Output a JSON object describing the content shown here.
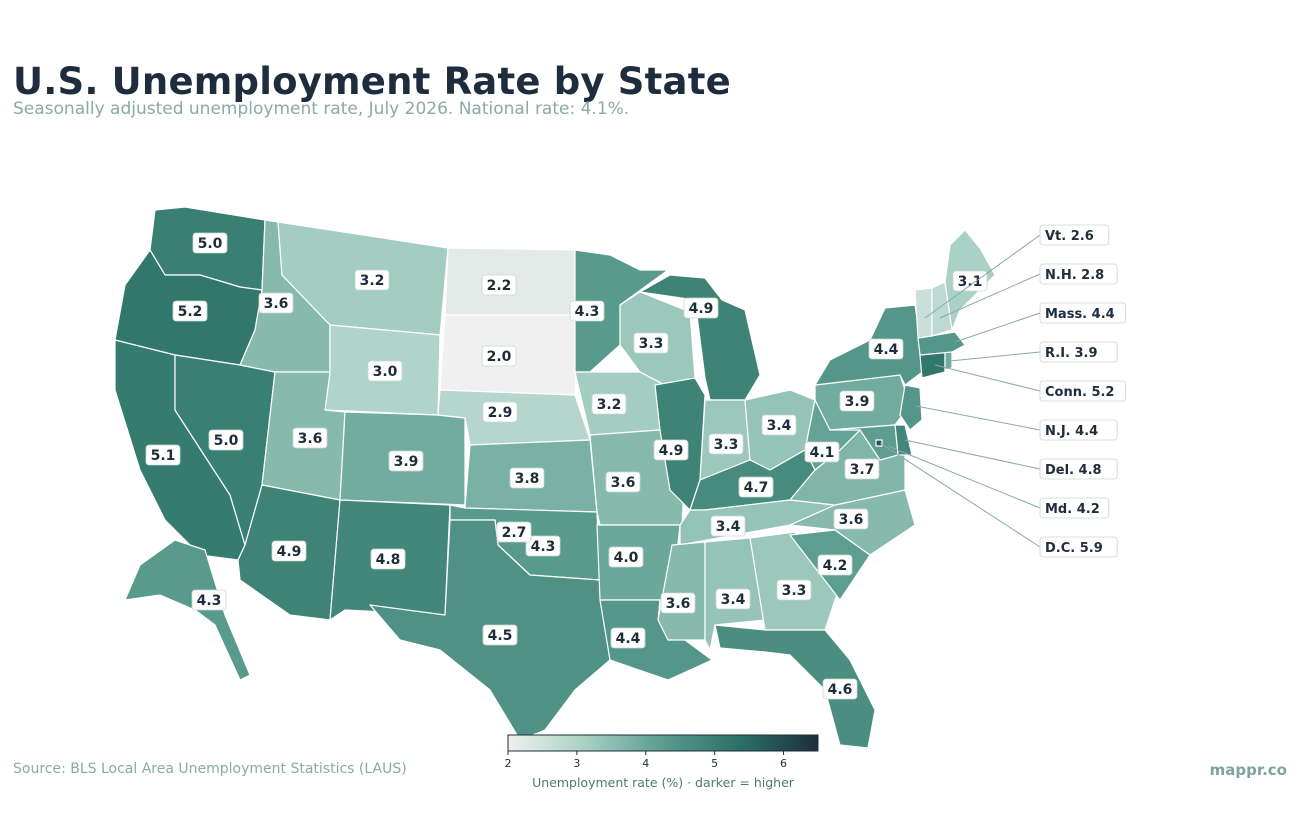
{
  "header": {
    "title": "U.S. Unemployment Rate by State",
    "subtitle": "Seasonally adjusted unemployment rate, July 2026. National rate: 4.1%."
  },
  "footer": {
    "source": "Source: BLS Local Area Unemployment Statistics (LAUS)",
    "brand": "mappr.co"
  },
  "legend": {
    "label": "Unemployment rate (%)  ·  darker = higher",
    "ticks": [
      "2",
      "3",
      "4",
      "5",
      "6"
    ],
    "min": 2,
    "max": 6.5,
    "colors": [
      "#f0f0f0",
      "#a8d0c4",
      "#5a9c8e",
      "#2a7065",
      "#1e2d3d"
    ]
  },
  "states": [
    {
      "id": "WA",
      "value": 5.0,
      "label": "5.0"
    },
    {
      "id": "OR",
      "value": 5.2,
      "label": "5.2"
    },
    {
      "id": "CA",
      "value": 5.1,
      "label": "5.1"
    },
    {
      "id": "NV",
      "value": 5.0,
      "label": "5.0"
    },
    {
      "id": "ID",
      "value": 3.6,
      "label": "3.6"
    },
    {
      "id": "MT",
      "value": 3.2,
      "label": "3.2"
    },
    {
      "id": "WY",
      "value": 3.0,
      "label": "3.0"
    },
    {
      "id": "UT",
      "value": 3.6,
      "label": "3.6"
    },
    {
      "id": "AZ",
      "value": 4.9,
      "label": "4.9"
    },
    {
      "id": "CO",
      "value": 3.9,
      "label": "3.9"
    },
    {
      "id": "NM",
      "value": 4.8,
      "label": "4.8"
    },
    {
      "id": "ND",
      "value": 2.2,
      "label": "2.2"
    },
    {
      "id": "SD",
      "value": 2.0,
      "label": "2.0"
    },
    {
      "id": "NE",
      "value": 2.9,
      "label": "2.9"
    },
    {
      "id": "KS",
      "value": 3.8,
      "label": "3.8"
    },
    {
      "id": "OK",
      "value": 4.3,
      "label": "4.3"
    },
    {
      "id": "TX",
      "value": 4.5,
      "label": "4.5"
    },
    {
      "id": "MN",
      "value": 4.3,
      "label": "4.3"
    },
    {
      "id": "IA",
      "value": 3.2,
      "label": "3.2"
    },
    {
      "id": "MO",
      "value": 3.6,
      "label": "3.6"
    },
    {
      "id": "AR",
      "value": 4.0,
      "label": "4.0"
    },
    {
      "id": "LA",
      "value": 4.4,
      "label": "4.4"
    },
    {
      "id": "WI",
      "value": 3.3,
      "label": "3.3"
    },
    {
      "id": "IL",
      "value": 4.9,
      "label": "4.9"
    },
    {
      "id": "MI",
      "value": 4.9,
      "label": "4.9"
    },
    {
      "id": "IN",
      "value": 3.3,
      "label": "3.3"
    },
    {
      "id": "OH",
      "value": 3.4,
      "label": "3.4"
    },
    {
      "id": "KY",
      "value": 4.7,
      "label": "4.7"
    },
    {
      "id": "TN",
      "value": 3.4,
      "label": "3.4"
    },
    {
      "id": "MS",
      "value": 3.6,
      "label": "3.6"
    },
    {
      "id": "AL",
      "value": 3.4,
      "label": "3.4"
    },
    {
      "id": "GA",
      "value": 3.3,
      "label": "3.3"
    },
    {
      "id": "FL",
      "value": 4.6,
      "label": "4.6"
    },
    {
      "id": "SC",
      "value": 4.2,
      "label": "4.2"
    },
    {
      "id": "NC",
      "value": 3.6,
      "label": "3.6"
    },
    {
      "id": "VA",
      "value": 3.7,
      "label": "3.7"
    },
    {
      "id": "WV",
      "value": 4.1,
      "label": "4.1"
    },
    {
      "id": "PA",
      "value": 3.9,
      "label": "3.9"
    },
    {
      "id": "NY",
      "value": 4.4,
      "label": "4.4"
    },
    {
      "id": "ME",
      "value": 3.1,
      "label": "3.1"
    },
    {
      "id": "AK",
      "value": 4.3,
      "label": "4.3"
    },
    {
      "id": "NL",
      "value": 2.7,
      "label": "2.7"
    }
  ],
  "callouts": [
    {
      "id": "VT",
      "value": 2.6,
      "label": "Vt. 2.6"
    },
    {
      "id": "NH",
      "value": 2.8,
      "label": "N.H. 2.8"
    },
    {
      "id": "MA",
      "value": 4.4,
      "label": "Mass. 4.4"
    },
    {
      "id": "RI",
      "value": 3.9,
      "label": "R.I. 3.9"
    },
    {
      "id": "CT",
      "value": 5.2,
      "label": "Conn. 5.2"
    },
    {
      "id": "NJ",
      "value": 4.4,
      "label": "N.J. 4.4"
    },
    {
      "id": "DE",
      "value": 4.8,
      "label": "Del. 4.8"
    },
    {
      "id": "MD",
      "value": 4.2,
      "label": "Md. 4.2"
    },
    {
      "id": "DC",
      "value": 5.9,
      "label": "D.C. 5.9"
    }
  ]
}
